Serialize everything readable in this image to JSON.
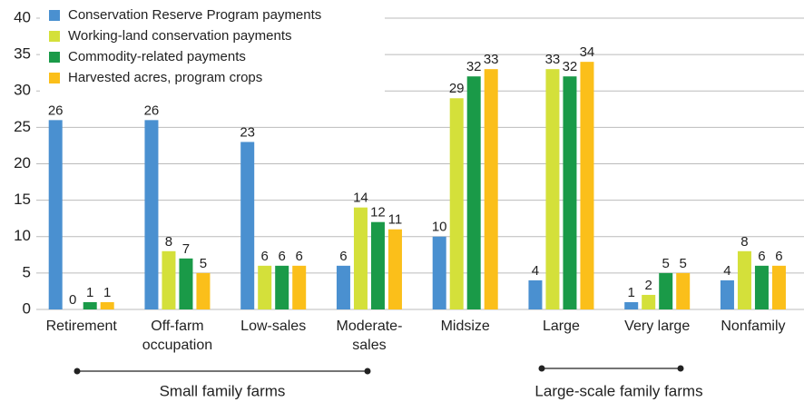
{
  "chart_data": {
    "type": "bar",
    "categories": [
      "Retirement",
      "Off-farm\noccupation",
      "Low-sales",
      "Moderate-\nsales",
      "Midsize",
      "Large",
      "Very large",
      "Nonfamily"
    ],
    "series": [
      {
        "name": "Conservation Reserve Program payments",
        "color": "#4a90d0",
        "values": [
          26,
          26,
          23,
          6,
          10,
          4,
          1,
          4
        ]
      },
      {
        "name": "Working-land conservation payments",
        "color": "#d4e03a",
        "values": [
          0,
          8,
          6,
          14,
          29,
          33,
          2,
          8
        ]
      },
      {
        "name": "Commodity-related payments",
        "color": "#1a9a48",
        "values": [
          1,
          7,
          6,
          12,
          32,
          32,
          5,
          6
        ]
      },
      {
        "name": "Harvested acres, program crops",
        "color": "#fbbf1a",
        "values": [
          1,
          5,
          6,
          11,
          33,
          34,
          5,
          6
        ]
      }
    ],
    "ylim": [
      0,
      40
    ],
    "yticks": [
      0,
      5,
      10,
      15,
      20,
      25,
      30,
      35,
      40
    ],
    "grid": true,
    "groups": [
      {
        "label": "Small family farms"
      },
      {
        "label": "Large-scale family farms"
      }
    ]
  }
}
